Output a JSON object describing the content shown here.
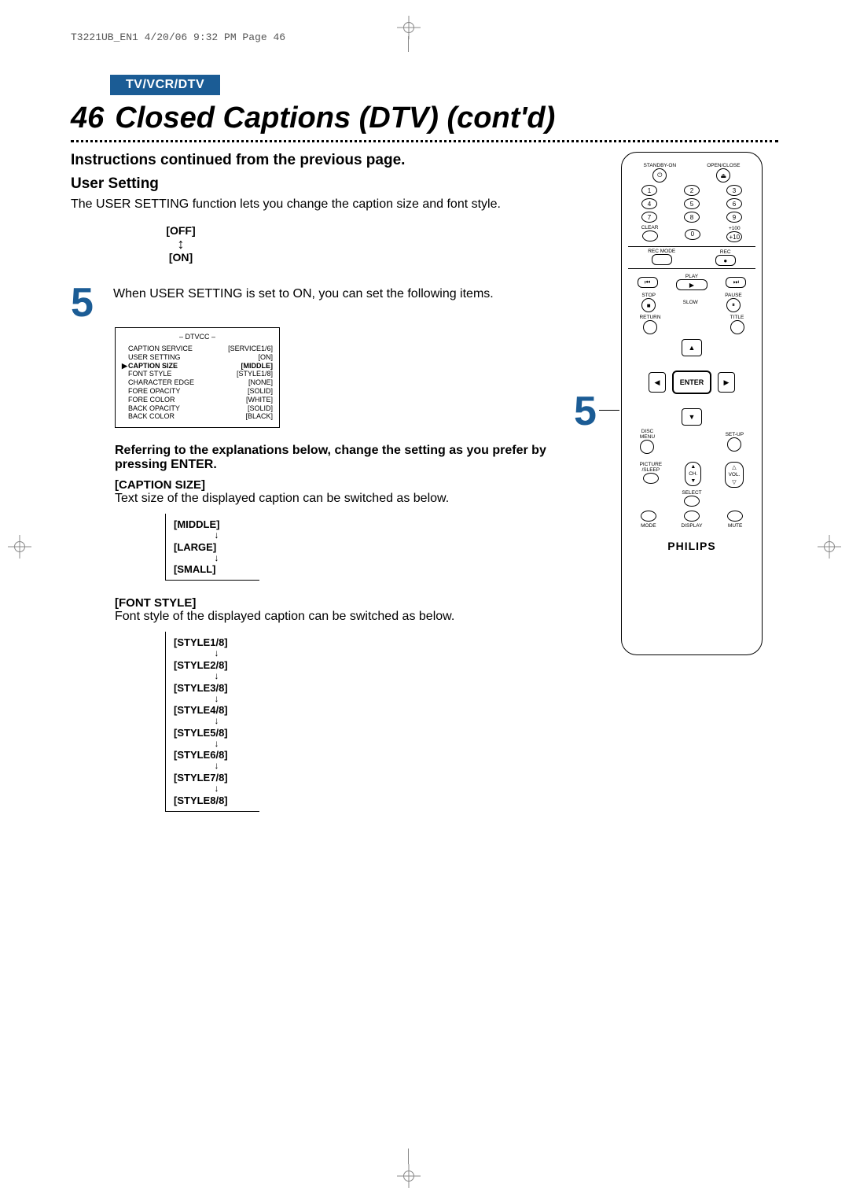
{
  "imprint": "T3221UB_EN1  4/20/06  9:32 PM  Page 46",
  "category": "TV/VCR/DTV",
  "pageNumber": "46",
  "pageTitle": "Closed Captions (DTV) (cont'd)",
  "instrCont": "Instructions continued from the previous page.",
  "userSetting": {
    "heading": "User Setting",
    "body": "The USER SETTING function lets you change the caption size and font style.",
    "toggle": {
      "off": "[OFF]",
      "on": "[ON]"
    }
  },
  "step5": {
    "number": "5",
    "text": "When USER SETTING is set to ON, you can set the following items."
  },
  "osd": {
    "title": "– DTVCC –",
    "rows": [
      {
        "k": "CAPTION SERVICE",
        "v": "[SERVICE1/6]"
      },
      {
        "k": "USER SETTING",
        "v": "[ON]"
      },
      {
        "k": "CAPTION SIZE",
        "v": "[MIDDLE]",
        "sel": true
      },
      {
        "k": "FONT STYLE",
        "v": "[STYLE1/8]"
      },
      {
        "k": "CHARACTER EDGE",
        "v": "[NONE]"
      },
      {
        "k": "FORE OPACITY",
        "v": "[SOLID]"
      },
      {
        "k": "FORE COLOR",
        "v": "[WHITE]"
      },
      {
        "k": "BACK OPACITY",
        "v": "[SOLID]"
      },
      {
        "k": "BACK COLOR",
        "v": "[BLACK]"
      }
    ]
  },
  "refer": "Referring to the explanations below, change the setting as you prefer by pressing ENTER.",
  "captionSize": {
    "head": "[CAPTION SIZE]",
    "body": "Text size of the displayed caption can be switched as below.",
    "cycle": [
      "[MIDDLE]",
      "[LARGE]",
      "[SMALL]"
    ]
  },
  "fontStyle": {
    "head": "[FONT STYLE]",
    "body": "Font style of the displayed caption can be switched as below.",
    "cycle": [
      "[STYLE1/8]",
      "[STYLE2/8]",
      "[STYLE3/8]",
      "[STYLE4/8]",
      "[STYLE5/8]",
      "[STYLE6/8]",
      "[STYLE7/8]",
      "[STYLE8/8]"
    ]
  },
  "remote": {
    "standby": "STANDBY-ON",
    "openclose": "OPEN/CLOSE",
    "nums": [
      "1",
      "2",
      "3",
      "4",
      "5",
      "6",
      "7",
      "8",
      "9",
      "0"
    ],
    "clear": "CLEAR",
    "plus100": "+100",
    "plus10": "+10",
    "recmode": "REC MODE",
    "rec": "REC",
    "play": "PLAY",
    "stop": "STOP",
    "slow": "SLOW",
    "pause": "PAUSE",
    "return": "RETURN",
    "title": "TITLE",
    "enter": "ENTER",
    "disc": "DISC\nMENU",
    "setup": "SET-UP",
    "picture": "PICTURE\n/SLEEP",
    "ch": "CH.",
    "vol": "VOL.",
    "select": "SELECT",
    "mode": "MODE",
    "display": "DISPLAY",
    "mute": "MUTE",
    "brand": "PHILIPS",
    "step5": "5"
  },
  "colors": {
    "accent": "#1b5c95",
    "text": "#000000",
    "background": "#ffffff",
    "imprint": "#555555",
    "crop": "#888888"
  }
}
